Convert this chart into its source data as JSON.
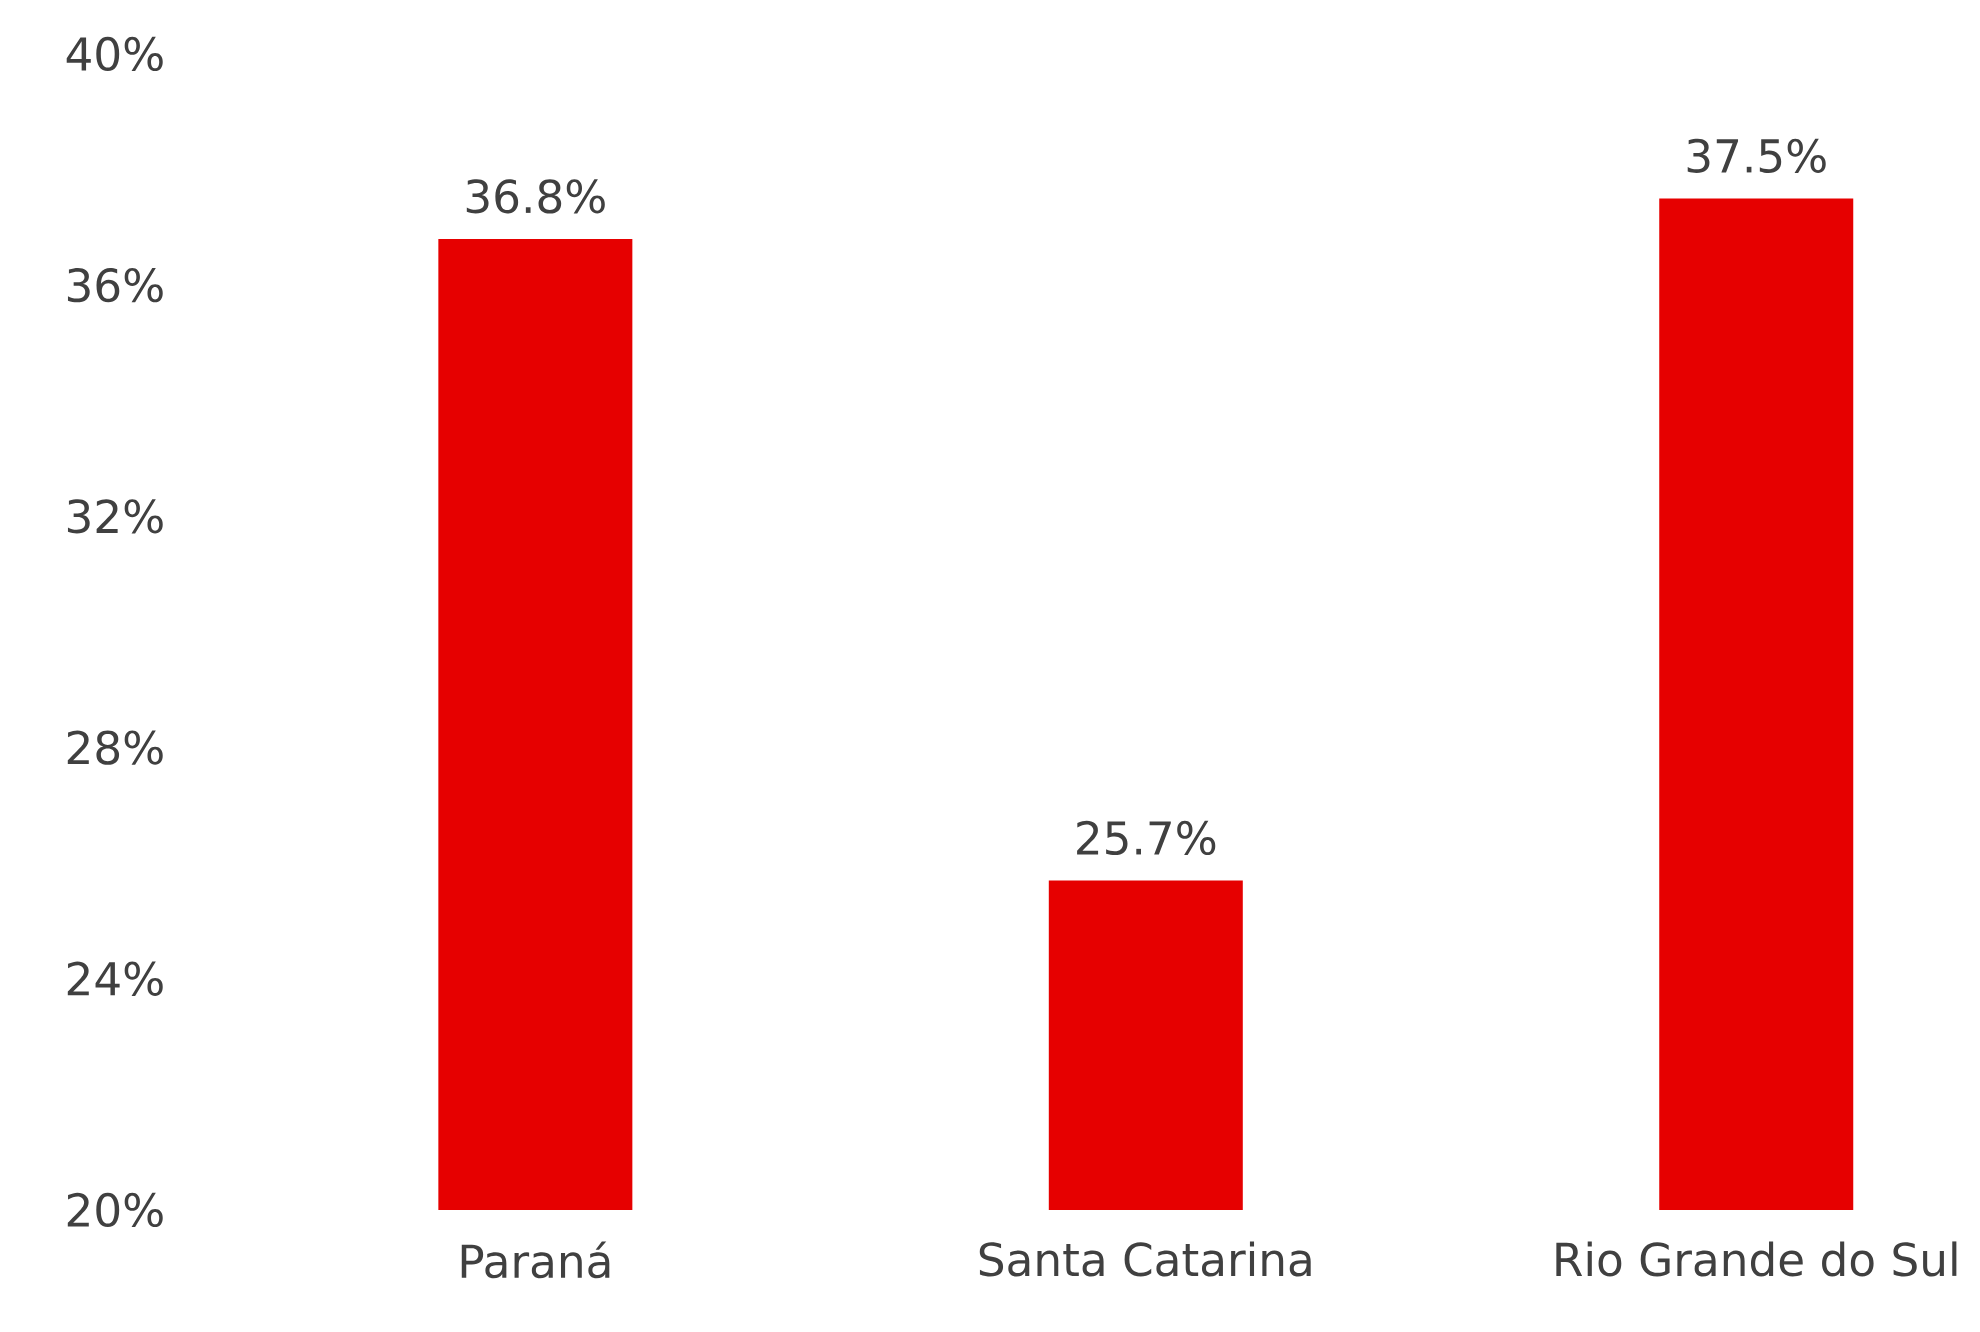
{
  "chart_data": {
    "type": "bar",
    "categories": [
      "Paraná",
      "Santa Catarina",
      "Rio Grande do Sul"
    ],
    "values": [
      36.8,
      25.7,
      37.5
    ],
    "color": "#e60000",
    "value_labels": [
      "36.8%",
      "25.7%",
      "37.5%"
    ],
    "ylim": [
      20,
      40
    ],
    "yticks": [
      {
        "value": 20,
        "label": "20%"
      },
      {
        "value": 24,
        "label": "24%"
      },
      {
        "value": 28,
        "label": "28%"
      },
      {
        "value": 32,
        "label": "32%"
      },
      {
        "value": 36,
        "label": "36%"
      },
      {
        "value": 40,
        "label": "40%"
      }
    ]
  }
}
